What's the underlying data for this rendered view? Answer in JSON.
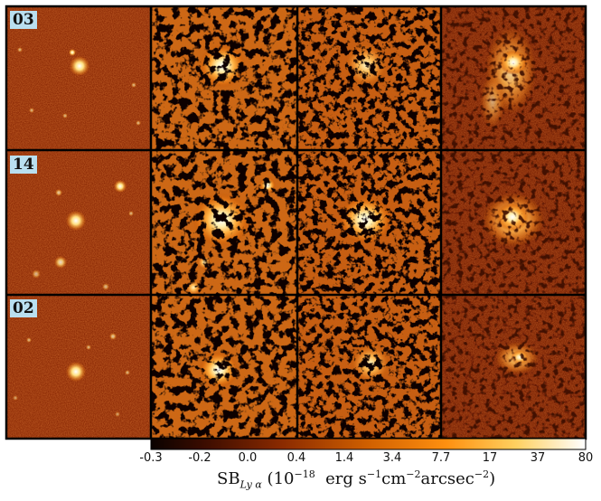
{
  "rows": [
    {
      "id": "03"
    },
    {
      "id": "14"
    },
    {
      "id": "02"
    }
  ],
  "colorbar": {
    "ticks": [
      "-0.3",
      "-0.2",
      "0.0",
      "0.4",
      "1.4",
      "3.4",
      "7.7",
      "17",
      "37",
      "80"
    ],
    "label_main": "SB",
    "label_sub": "Ly α",
    "label_units_open": " (10",
    "label_exp1": "−18",
    "label_mid": "  erg s",
    "label_exp2": "−1",
    "label_cm": "cm",
    "label_exp3": "−2",
    "label_arc": "arcsec",
    "label_exp4": "−2",
    "label_close": ")"
  },
  "colors": {
    "frame": "#000000",
    "tag_bg": "#b9dff0",
    "cmap_dark": "#1a0500",
    "cmap_mid": "#a84400",
    "cmap_bright": "#ffd060",
    "cmap_white": "#ffffff"
  }
}
